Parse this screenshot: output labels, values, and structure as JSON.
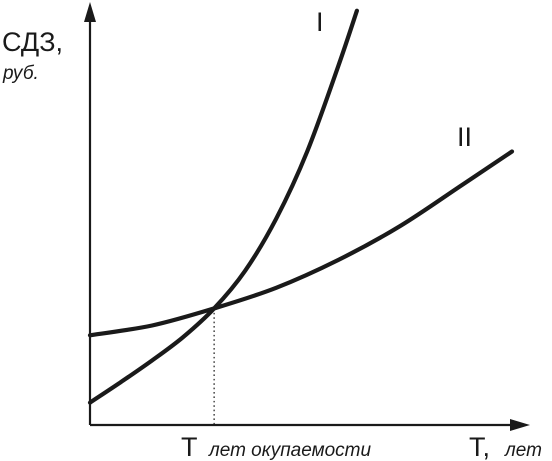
{
  "chart_data": {
    "type": "line",
    "title": "",
    "ylabel": "СДЗ,",
    "ylabel_unit": "руб.",
    "xlabel": "T,",
    "xlabel_unit": "лет",
    "x_marker": {
      "label": "T",
      "sublabel": "лет окупаемости",
      "x": 1,
      "style": "dotted drop line from the curves' intersection to the x axis"
    },
    "grid": false,
    "legend": "none",
    "xlim": [
      0,
      3.4
    ],
    "ylim": [
      0,
      4.65
    ],
    "series": [
      {
        "name": "I",
        "x": [
          0,
          0.25,
          0.5,
          0.75,
          1.0,
          1.25,
          1.5,
          1.75,
          2.0,
          2.15
        ],
        "y": [
          0.25,
          0.48,
          0.72,
          0.98,
          1.3,
          1.72,
          2.3,
          3.05,
          4.0,
          4.62
        ]
      },
      {
        "name": "II",
        "x": [
          0,
          0.5,
          1.0,
          1.5,
          2.0,
          2.5,
          3.0,
          3.4
        ],
        "y": [
          1.0,
          1.11,
          1.3,
          1.53,
          1.84,
          2.22,
          2.68,
          3.05
        ]
      }
    ]
  }
}
